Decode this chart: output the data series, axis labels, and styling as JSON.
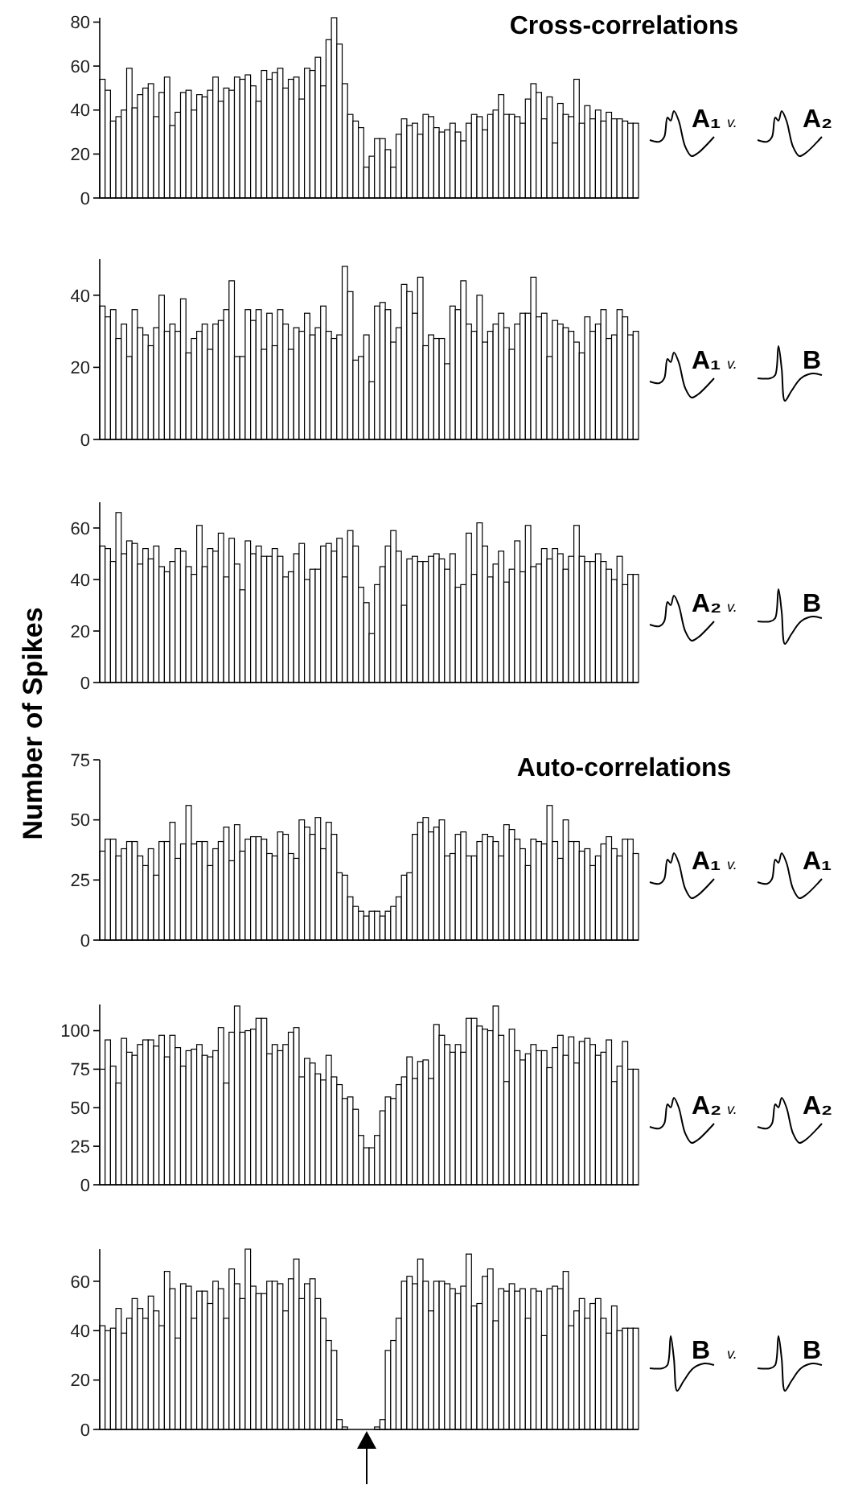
{
  "chart_data": [
    {
      "type": "bar",
      "title": "Cross-correlations",
      "color": "#ffffff",
      "ylim": [
        0,
        82
      ],
      "yticks": [
        0,
        20,
        40,
        60,
        80
      ],
      "annotations": [
        "A₁",
        "v.",
        "A₂"
      ],
      "categories": [
        null,
        null,
        null,
        null,
        null,
        null,
        null,
        null,
        null,
        null,
        null,
        null,
        null,
        null,
        null,
        null,
        null,
        null,
        null,
        null,
        null,
        null,
        null,
        null,
        null,
        null,
        null,
        null,
        null,
        null,
        null,
        null,
        null,
        null,
        null,
        null,
        null,
        null,
        null,
        null,
        null,
        null,
        null,
        null,
        null,
        null,
        null,
        null,
        null,
        null,
        null,
        null,
        null,
        null,
        null,
        null,
        null,
        null,
        null,
        null,
        null,
        null,
        null,
        null,
        null,
        null,
        null,
        null,
        null,
        null,
        null,
        null,
        null,
        null,
        null,
        null,
        null,
        null,
        null,
        null,
        null,
        null,
        null,
        null,
        null,
        null,
        null,
        null,
        null,
        null,
        null,
        null,
        null,
        null,
        null,
        null,
        null,
        null,
        null,
        null
      ],
      "values": [
        54,
        49,
        35,
        37,
        40,
        59,
        41,
        47,
        50,
        52,
        37,
        48,
        55,
        33,
        39,
        48,
        49,
        40,
        47,
        46,
        49,
        55,
        44,
        50,
        49,
        55,
        54,
        56,
        51,
        44,
        58,
        54,
        57,
        59,
        50,
        54,
        55,
        45,
        59,
        58,
        64,
        51,
        72,
        82,
        70,
        52,
        38,
        35,
        32,
        14,
        19,
        27,
        27,
        22,
        14,
        29,
        36,
        33,
        34,
        29,
        38,
        37,
        32,
        30,
        31,
        34,
        30,
        26,
        34,
        38,
        37,
        31,
        38,
        40,
        47,
        38,
        38,
        37,
        34,
        45,
        52,
        48,
        36,
        46,
        25,
        43,
        38,
        37,
        54,
        34,
        42,
        36,
        40,
        35,
        39,
        36,
        36,
        35,
        34,
        34
      ]
    },
    {
      "type": "bar",
      "color": "#ffffff",
      "ylim": [
        0,
        50
      ],
      "yticks": [
        0,
        20,
        40
      ],
      "annotations": [
        "A₁",
        "v.",
        "B"
      ],
      "categories": [
        null,
        null,
        null,
        null,
        null,
        null,
        null,
        null,
        null,
        null,
        null,
        null,
        null,
        null,
        null,
        null,
        null,
        null,
        null,
        null,
        null,
        null,
        null,
        null,
        null,
        null,
        null,
        null,
        null,
        null,
        null,
        null,
        null,
        null,
        null,
        null,
        null,
        null,
        null,
        null,
        null,
        null,
        null,
        null,
        null,
        null,
        null,
        null,
        null,
        null,
        null,
        null,
        null,
        null,
        null,
        null,
        null,
        null,
        null,
        null,
        null,
        null,
        null,
        null,
        null,
        null,
        null,
        null,
        null,
        null,
        null,
        null,
        null,
        null,
        null,
        null,
        null,
        null,
        null,
        null,
        null,
        null,
        null,
        null,
        null,
        null,
        null,
        null,
        null,
        null,
        null,
        null,
        null,
        null,
        null,
        null,
        null,
        null,
        null,
        null
      ],
      "values": [
        37,
        34,
        36,
        28,
        32,
        23,
        36,
        31,
        29,
        26,
        31,
        40,
        30,
        32,
        30,
        39,
        24,
        28,
        30,
        32,
        25,
        32,
        33,
        36,
        44,
        23,
        23,
        36,
        33,
        36,
        25,
        35,
        26,
        36,
        32,
        25,
        31,
        30,
        35,
        29,
        31,
        37,
        30,
        28,
        29,
        48,
        41,
        22,
        23,
        29,
        16,
        37,
        38,
        36,
        27,
        31,
        43,
        41,
        35,
        45,
        26,
        29,
        28,
        28,
        21,
        37,
        36,
        44,
        32,
        30,
        40,
        27,
        30,
        32,
        35,
        31,
        25,
        32,
        35,
        35,
        45,
        34,
        35,
        23,
        33,
        32,
        31,
        30,
        27,
        24,
        34,
        30,
        32,
        36,
        28,
        29,
        36,
        34,
        29,
        30
      ]
    },
    {
      "type": "bar",
      "color": "#ffffff",
      "ylim": [
        0,
        70
      ],
      "yticks": [
        0,
        20,
        40,
        60
      ],
      "annotations": [
        "A₂",
        "v.",
        "B"
      ],
      "categories": [
        null,
        null,
        null,
        null,
        null,
        null,
        null,
        null,
        null,
        null,
        null,
        null,
        null,
        null,
        null,
        null,
        null,
        null,
        null,
        null,
        null,
        null,
        null,
        null,
        null,
        null,
        null,
        null,
        null,
        null,
        null,
        null,
        null,
        null,
        null,
        null,
        null,
        null,
        null,
        null,
        null,
        null,
        null,
        null,
        null,
        null,
        null,
        null,
        null,
        null,
        null,
        null,
        null,
        null,
        null,
        null,
        null,
        null,
        null,
        null,
        null,
        null,
        null,
        null,
        null,
        null,
        null,
        null,
        null,
        null,
        null,
        null,
        null,
        null,
        null,
        null,
        null,
        null,
        null,
        null,
        null,
        null,
        null,
        null,
        null,
        null,
        null,
        null,
        null,
        null,
        null,
        null,
        null,
        null,
        null,
        null,
        null,
        null,
        null,
        null
      ],
      "values": [
        53,
        52,
        47,
        66,
        50,
        55,
        54,
        46,
        52,
        48,
        53,
        45,
        43,
        47,
        52,
        51,
        45,
        42,
        61,
        45,
        52,
        51,
        58,
        41,
        56,
        46,
        36,
        55,
        50,
        53,
        49,
        49,
        52,
        49,
        41,
        43,
        50,
        54,
        40,
        44,
        44,
        53,
        54,
        51,
        56,
        41,
        59,
        53,
        37,
        31,
        19,
        38,
        45,
        53,
        59,
        51,
        30,
        48,
        49,
        47,
        47,
        49,
        50,
        48,
        44,
        50,
        37,
        38,
        58,
        42,
        62,
        53,
        41,
        46,
        51,
        39,
        44,
        55,
        43,
        61,
        45,
        46,
        52,
        48,
        52,
        50,
        44,
        49,
        61,
        49,
        47,
        47,
        50,
        47,
        44,
        40,
        49,
        38,
        42,
        42
      ]
    },
    {
      "type": "bar",
      "title": "Auto-correlations",
      "ylabel": "Number of Spikes",
      "color": "#ffffff",
      "ylim": [
        0,
        75
      ],
      "yticks": [
        0,
        25,
        50,
        75
      ],
      "annotations": [
        "A₁",
        "v.",
        "A₁"
      ],
      "categories": [
        null,
        null,
        null,
        null,
        null,
        null,
        null,
        null,
        null,
        null,
        null,
        null,
        null,
        null,
        null,
        null,
        null,
        null,
        null,
        null,
        null,
        null,
        null,
        null,
        null,
        null,
        null,
        null,
        null,
        null,
        null,
        null,
        null,
        null,
        null,
        null,
        null,
        null,
        null,
        null,
        null,
        null,
        null,
        null,
        null,
        null,
        null,
        null,
        null,
        null,
        null,
        null,
        null,
        null,
        null,
        null,
        null,
        null,
        null,
        null,
        null,
        null,
        null,
        null,
        null,
        null,
        null,
        null,
        null,
        null,
        null,
        null,
        null,
        null,
        null,
        null,
        null,
        null,
        null,
        null,
        null,
        null,
        null,
        null,
        null,
        null,
        null,
        null,
        null,
        null,
        null,
        null,
        null,
        null,
        null,
        null,
        null,
        null,
        null,
        null
      ],
      "values": [
        37,
        42,
        42,
        35,
        38,
        41,
        41,
        35,
        31,
        38,
        27,
        41,
        41,
        49,
        34,
        40,
        56,
        40,
        41,
        41,
        31,
        38,
        41,
        47,
        33,
        48,
        37,
        42,
        43,
        43,
        42,
        36,
        35,
        45,
        44,
        36,
        34,
        50,
        47,
        44,
        51,
        38,
        49,
        44,
        28,
        27,
        18,
        14,
        12,
        10,
        12,
        12,
        10,
        12,
        14,
        18,
        27,
        28,
        44,
        49,
        51,
        45,
        47,
        50,
        35,
        36,
        44,
        45,
        35,
        35,
        41,
        44,
        43,
        41,
        35,
        48,
        46,
        42,
        38,
        31,
        42,
        41,
        40,
        56,
        41,
        34,
        50,
        41,
        41,
        37,
        38,
        31,
        35,
        40,
        43,
        38,
        35,
        42,
        42,
        36
      ]
    },
    {
      "type": "bar",
      "color": "#ffffff",
      "ylim": [
        0,
        117
      ],
      "yticks": [
        0,
        25,
        50,
        75,
        100
      ],
      "annotations": [
        "A₂",
        "v.",
        "A₂"
      ],
      "categories": [
        null,
        null,
        null,
        null,
        null,
        null,
        null,
        null,
        null,
        null,
        null,
        null,
        null,
        null,
        null,
        null,
        null,
        null,
        null,
        null,
        null,
        null,
        null,
        null,
        null,
        null,
        null,
        null,
        null,
        null,
        null,
        null,
        null,
        null,
        null,
        null,
        null,
        null,
        null,
        null,
        null,
        null,
        null,
        null,
        null,
        null,
        null,
        null,
        null,
        null,
        null,
        null,
        null,
        null,
        null,
        null,
        null,
        null,
        null,
        null,
        null,
        null,
        null,
        null,
        null,
        null,
        null,
        null,
        null,
        null,
        null,
        null,
        null,
        null,
        null,
        null,
        null,
        null,
        null,
        null,
        null,
        null,
        null,
        null,
        null,
        null,
        null,
        null,
        null,
        null,
        null,
        null,
        null,
        null,
        null,
        null,
        null,
        null,
        null,
        null
      ],
      "values": [
        75,
        94,
        77,
        66,
        95,
        86,
        84,
        91,
        94,
        94,
        90,
        97,
        83,
        97,
        89,
        77,
        87,
        88,
        91,
        84,
        83,
        87,
        102,
        66,
        99,
        116,
        99,
        100,
        101,
        108,
        108,
        85,
        91,
        87,
        91,
        99,
        102,
        70,
        82,
        79,
        72,
        68,
        84,
        70,
        65,
        56,
        57,
        49,
        32,
        24,
        24,
        32,
        48,
        57,
        56,
        65,
        70,
        83,
        69,
        80,
        81,
        69,
        104,
        97,
        91,
        86,
        91,
        86,
        108,
        108,
        103,
        101,
        100,
        116,
        97,
        67,
        101,
        87,
        81,
        85,
        91,
        87,
        87,
        76,
        89,
        97,
        84,
        96,
        79,
        93,
        95,
        91,
        84,
        86,
        94,
        67,
        77,
        93,
        75,
        75
      ]
    },
    {
      "type": "bar",
      "color": "#ffffff",
      "ylim": [
        0,
        73
      ],
      "yticks": [
        0,
        20,
        40,
        60
      ],
      "annotations": [
        "B",
        "v.",
        "B"
      ],
      "categories": [
        null,
        null,
        null,
        null,
        null,
        null,
        null,
        null,
        null,
        null,
        null,
        null,
        null,
        null,
        null,
        null,
        null,
        null,
        null,
        null,
        null,
        null,
        null,
        null,
        null,
        null,
        null,
        null,
        null,
        null,
        null,
        null,
        null,
        null,
        null,
        null,
        null,
        null,
        null,
        null,
        null,
        null,
        null,
        null,
        null,
        null,
        null,
        null,
        null,
        null,
        null,
        null,
        null,
        null,
        null,
        null,
        null,
        null,
        null,
        null,
        null,
        null,
        null,
        null,
        null,
        null,
        null,
        null,
        null,
        null,
        null,
        null,
        null,
        null,
        null,
        null,
        null,
        null,
        null,
        null,
        null,
        null,
        null,
        null,
        null,
        null,
        null,
        null,
        null,
        null,
        null,
        null,
        null,
        null,
        null,
        null,
        null,
        null,
        null,
        null
      ],
      "values": [
        42,
        40,
        41,
        49,
        39,
        45,
        53,
        49,
        45,
        54,
        48,
        42,
        64,
        57,
        37,
        59,
        58,
        45,
        56,
        56,
        51,
        60,
        57,
        45,
        65,
        59,
        53,
        73,
        58,
        55,
        55,
        60,
        60,
        59,
        48,
        61,
        69,
        53,
        59,
        61,
        53,
        45,
        36,
        32,
        4,
        1,
        0,
        0,
        0,
        0,
        0,
        1,
        4,
        32,
        36,
        45,
        60,
        62,
        59,
        69,
        60,
        48,
        60,
        60,
        59,
        57,
        55,
        58,
        71,
        50,
        51,
        62,
        65,
        44,
        57,
        56,
        59,
        56,
        57,
        45,
        57,
        56,
        38,
        57,
        58,
        57,
        64,
        42,
        48,
        53,
        45,
        51,
        53,
        45,
        39,
        50,
        40,
        41,
        41,
        41
      ]
    }
  ]
}
